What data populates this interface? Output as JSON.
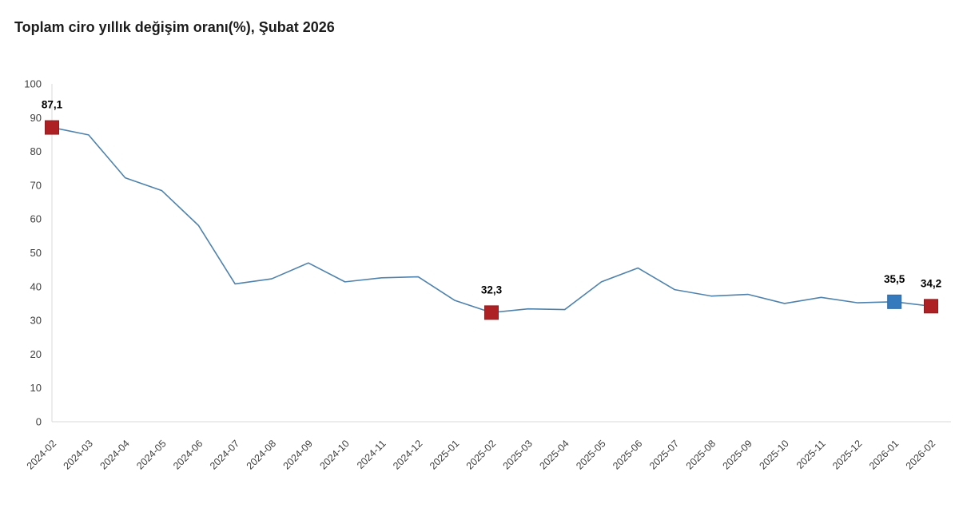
{
  "page": {
    "title": "Toplam ciro yıllık değişim oranı(%), Şubat 2026"
  },
  "chart_data": {
    "type": "line",
    "title": "Toplam ciro yıllık değişim oranı(%), Şubat 2026",
    "categories": [
      "2024-02",
      "2024-03",
      "2024-04",
      "2024-05",
      "2024-06",
      "2024-07",
      "2024-08",
      "2024-09",
      "2024-10",
      "2024-11",
      "2024-12",
      "2025-01",
      "2025-02",
      "2025-03",
      "2025-04",
      "2025-05",
      "2025-06",
      "2025-07",
      "2025-08",
      "2025-09",
      "2025-10",
      "2025-11",
      "2025-12",
      "2026-01",
      "2026-02"
    ],
    "values": [
      87.1,
      84.9,
      72.2,
      68.4,
      58.1,
      40.8,
      42.3,
      47.0,
      41.4,
      42.6,
      42.9,
      35.9,
      32.3,
      33.4,
      33.2,
      41.4,
      45.5,
      39.1,
      37.2,
      37.7,
      35.0,
      36.8,
      35.2,
      35.5,
      34.2
    ],
    "xlabel": "",
    "ylabel": "",
    "ylim": [
      0,
      100
    ],
    "ytick_step": 10,
    "ytick_labels": [
      "0",
      "10",
      "20",
      "30",
      "40",
      "50",
      "60",
      "70",
      "80",
      "90",
      "100"
    ],
    "grid": false,
    "legend": "none",
    "highlighted_points": [
      {
        "index": 0,
        "category": "2024-02",
        "value": 87.1,
        "label": "87,1",
        "marker_color": "#ad2024",
        "marker_border": "#951a1d"
      },
      {
        "index": 12,
        "category": "2025-02",
        "value": 32.3,
        "label": "32,3",
        "marker_color": "#ad2024",
        "marker_border": "#951a1d"
      },
      {
        "index": 23,
        "category": "2026-01",
        "value": 35.5,
        "label": "35,5",
        "marker_color": "#347abd",
        "marker_border": "#2d6ca8"
      },
      {
        "index": 24,
        "category": "2026-02",
        "value": 34.2,
        "label": "34,2",
        "marker_color": "#ad2024",
        "marker_border": "#951a1d"
      }
    ],
    "colors": {
      "line": "#4e82ad",
      "axis_line": "#d9d9d9",
      "tick_text": "#404040",
      "title_text": "#1c1c1c",
      "point_label_text": "#000000",
      "background": "#ffffff"
    }
  }
}
